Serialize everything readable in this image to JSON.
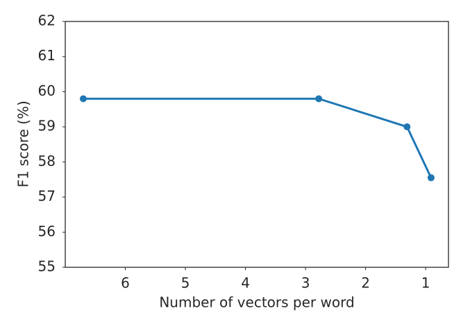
{
  "chart_data": {
    "type": "line",
    "xlabel": "Number of vectors per word",
    "ylabel": "F1 score (%)",
    "x": [
      6.7,
      2.78,
      1.31,
      0.91
    ],
    "series": [
      {
        "name": "F1",
        "color": "#1f77b4",
        "values": [
          59.8,
          59.8,
          59.0,
          57.55
        ]
      }
    ],
    "xlim": [
      7.0,
      0.62
    ],
    "xticks": [
      6,
      5,
      4,
      3,
      2,
      1
    ],
    "ylim": [
      55,
      62
    ],
    "yticks": [
      55,
      56,
      57,
      58,
      59,
      60,
      61,
      62
    ]
  }
}
